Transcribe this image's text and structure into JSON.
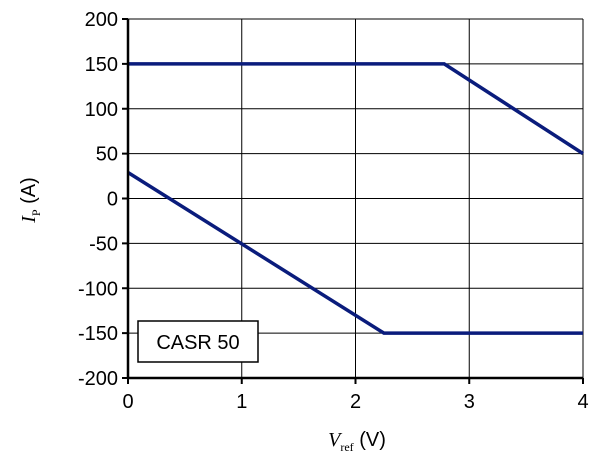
{
  "chart_data": {
    "type": "line",
    "xlim": [
      0,
      4
    ],
    "ylim": [
      -200,
      200
    ],
    "x_ticks": [
      0,
      1,
      2,
      3,
      4
    ],
    "y_ticks": [
      200,
      150,
      100,
      50,
      0,
      -50,
      -100,
      -150,
      -200
    ],
    "grid": true,
    "xlabel": {
      "main": "V",
      "sub": "ref",
      "unit": " (V)"
    },
    "ylabel": {
      "main": "I",
      "sub": "P",
      "unit": " (A)"
    },
    "series_color": "#0a1c7c",
    "series": [
      {
        "x": [
          0,
          2.78,
          4
        ],
        "y": [
          150,
          150,
          50
        ]
      },
      {
        "x": [
          0,
          2.25,
          4
        ],
        "y": [
          29,
          -150,
          -150
        ]
      }
    ],
    "annotation": "CASR 50"
  }
}
